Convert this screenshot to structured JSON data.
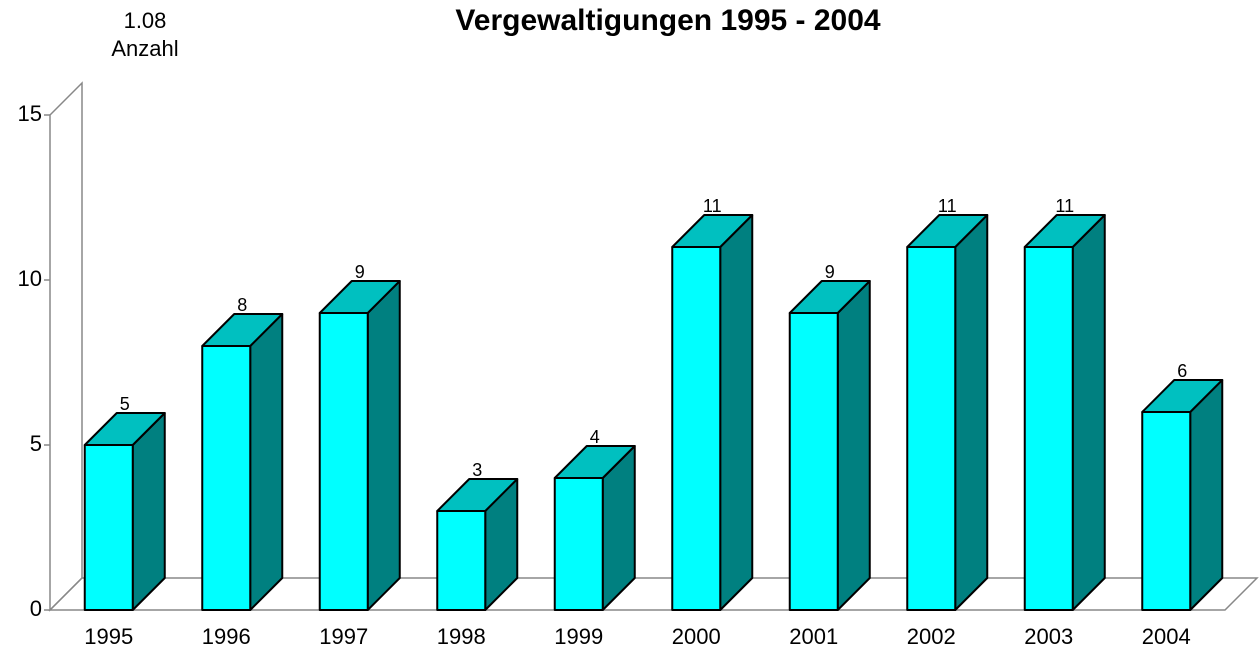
{
  "chart_data": {
    "type": "bar3d",
    "title": "Vergewaltigungen 1995 - 2004",
    "page_label": "1.08",
    "ylabel": "Anzahl",
    "categories": [
      "1995",
      "1996",
      "1997",
      "1998",
      "1999",
      "2000",
      "2001",
      "2002",
      "2003",
      "2004"
    ],
    "values": [
      5,
      8,
      9,
      3,
      4,
      11,
      9,
      11,
      11,
      6
    ],
    "color": "#00ffff",
    "side_color": "#008080",
    "top_color": "#00c0c0",
    "ylim": [
      0,
      15
    ],
    "yticks": [
      0,
      5,
      10,
      15
    ],
    "grid": false
  }
}
